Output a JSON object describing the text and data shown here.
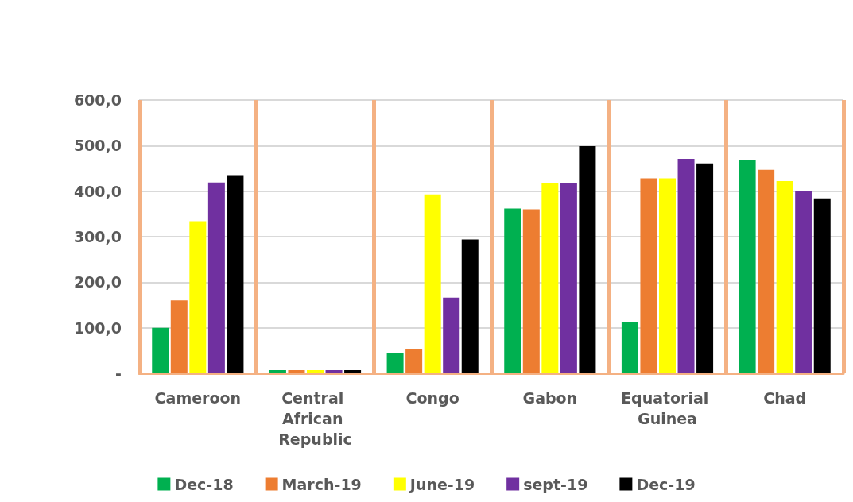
{
  "chart_data": {
    "type": "bar",
    "categories": [
      "Cameroon",
      "Central African Republic",
      "Congo",
      "Gabon",
      "Equatorial Guinea",
      "Chad"
    ],
    "series": [
      {
        "name": "Dec-18",
        "color": "#00b050",
        "values": [
          100,
          7,
          45,
          362,
          113,
          468
        ]
      },
      {
        "name": "March-19",
        "color": "#ed7d31",
        "values": [
          160,
          7,
          54,
          360,
          428,
          447
        ]
      },
      {
        "name": "June-19",
        "color": "#ffff00",
        "values": [
          334,
          7,
          393,
          417,
          428,
          422
        ]
      },
      {
        "name": "sept-19",
        "color": "#7030a0",
        "values": [
          419,
          7,
          166,
          417,
          471,
          400
        ]
      },
      {
        "name": "Dec-19",
        "color": "#000000",
        "values": [
          435,
          7,
          294,
          499,
          461,
          384
        ]
      }
    ],
    "ylim": [
      0,
      600
    ],
    "yticks": [
      {
        "value": 0,
        "label": "-"
      },
      {
        "value": 100,
        "label": "100,0"
      },
      {
        "value": 200,
        "label": "200,0"
      },
      {
        "value": 300,
        "label": "300,0"
      },
      {
        "value": 400,
        "label": "400,0"
      },
      {
        "value": 500,
        "label": "500,0"
      },
      {
        "value": 600,
        "label": "600,0"
      }
    ],
    "grid": "y",
    "legend": "bottom"
  }
}
